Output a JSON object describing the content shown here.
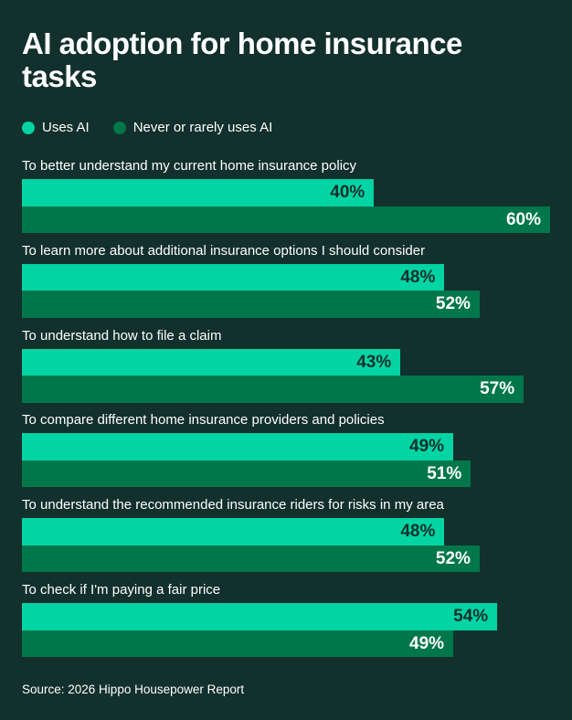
{
  "chart_data": {
    "type": "bar",
    "orientation": "horizontal",
    "title": "AI adoption for home insurance tasks",
    "categories": [
      "To better understand my current home insurance policy",
      "To learn more about additional insurance options I should consider",
      "To understand how to file a claim",
      "To compare different home insurance providers and policies",
      "To understand the recommended insurance riders for risks in my area",
      "To check if I'm paying a fair price"
    ],
    "series": [
      {
        "name": "Uses AI",
        "color": "#02d4a4",
        "label_color": "#12302c",
        "values": [
          40,
          48,
          43,
          49,
          48,
          54
        ]
      },
      {
        "name": "Never or rarely uses AI",
        "color": "#00774b",
        "label_color": "#ffffff",
        "values": [
          60,
          52,
          57,
          51,
          52,
          49
        ]
      }
    ],
    "value_suffix": "%",
    "xlim": [
      0,
      60
    ],
    "grid": false,
    "legend_position": "top-left",
    "source": "Source: 2026 Hippo Housepower Report"
  }
}
